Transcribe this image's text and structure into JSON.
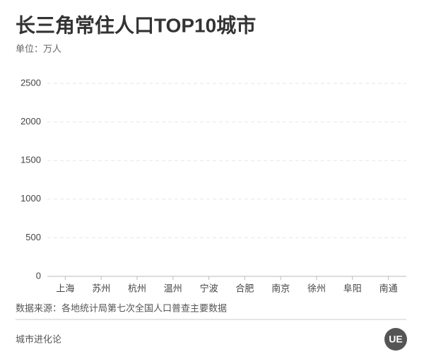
{
  "chart_data": {
    "type": "bar",
    "title": "长三角常住人口TOP10城市",
    "subtitle": "单位：万人",
    "categories": [
      "上海",
      "苏州",
      "杭州",
      "温州",
      "宁波",
      "合肥",
      "南京",
      "徐州",
      "阜阳",
      "南通"
    ],
    "ylim": [
      0,
      2500
    ],
    "yticks": [
      0,
      500,
      1000,
      1500,
      2000,
      2500
    ],
    "grid": true,
    "source": "数据来源：各地统计局第七次全国人口普查主要数据",
    "footer": "城市进化论",
    "logo": "UE"
  }
}
